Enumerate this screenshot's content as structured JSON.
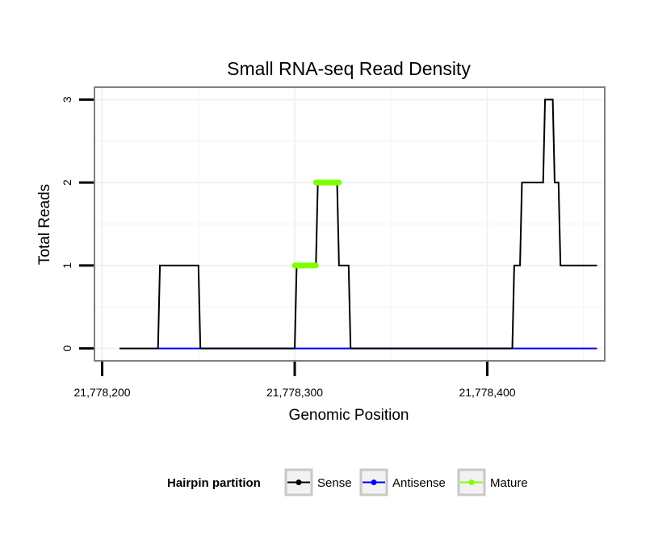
{
  "chart_data": {
    "type": "line",
    "title": "Small RNA-seq Read Density",
    "xlabel": "Genomic Position",
    "ylabel": "Total Reads",
    "xlim": [
      21778196,
      21778461
    ],
    "ylim": [
      -0.15,
      3.15
    ],
    "x_ticks": [
      21778200,
      21778300,
      21778400
    ],
    "x_tick_labels": [
      "21,778,200",
      "21,778,300",
      "21,778,400"
    ],
    "y_ticks": [
      0,
      1,
      2,
      3
    ],
    "y_tick_labels": [
      "0",
      "1",
      "2",
      "3"
    ],
    "grid": true,
    "legend_placement": "bottom",
    "legend_title": "Hairpin partition",
    "colors": {
      "Sense": "#000000",
      "Antisense": "#0000ff",
      "Mature": "#7fff00",
      "panel_border": "#808080",
      "grid": "#f2f2f2"
    },
    "series": [
      {
        "name": "Sense",
        "color": "#000000",
        "style": "step",
        "x": [
          21778209,
          21778229,
          21778230,
          21778250,
          21778251,
          21778300,
          21778301,
          21778311,
          21778312,
          21778322,
          21778323,
          21778328,
          21778329,
          21778413,
          21778414,
          21778417,
          21778418,
          21778429,
          21778430,
          21778434,
          21778435,
          21778437,
          21778438,
          21778457
        ],
        "y": [
          0,
          0,
          1,
          1,
          0,
          0,
          1,
          1,
          2,
          2,
          1,
          1,
          0,
          0,
          1,
          1,
          2,
          2,
          3,
          3,
          2,
          2,
          1,
          1
        ]
      },
      {
        "name": "Antisense",
        "color": "#0000ff",
        "style": "line",
        "x": [
          21778229,
          21778457
        ],
        "y": [
          0,
          0
        ]
      },
      {
        "name": "Mature",
        "color": "#7fff00",
        "style": "segments",
        "segments": [
          {
            "x": [
              21778300,
              21778311
            ],
            "y": 1
          },
          {
            "x": [
              21778311,
              21778323
            ],
            "y": 2
          }
        ]
      }
    ]
  }
}
